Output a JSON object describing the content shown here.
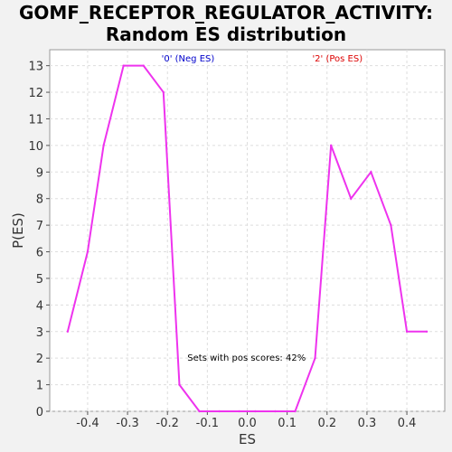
{
  "chart_data": {
    "type": "line",
    "title_line1": "GOMF_RECEPTOR_REGULATOR_ACTIVITY:",
    "title_line2": "Random ES distribution",
    "xlabel": "ES",
    "ylabel": "P(ES)",
    "xlim": [
      -0.495,
      0.495
    ],
    "ylim": [
      0,
      13.6
    ],
    "xticks": [
      -0.4,
      -0.3,
      -0.2,
      -0.1,
      0.0,
      0.1,
      0.2,
      0.3,
      0.4
    ],
    "xtick_labels": [
      "-0.4",
      "-0.3",
      "-0.2",
      "-0.1",
      "0.0",
      "0.1",
      "0.2",
      "0.3",
      "0.4"
    ],
    "yticks": [
      0,
      1,
      2,
      3,
      4,
      5,
      6,
      7,
      8,
      9,
      10,
      11,
      12,
      13
    ],
    "grid": true,
    "legend": [
      {
        "label": "'0' (Neg ES)",
        "color": "#0000cc",
        "x": -0.215
      },
      {
        "label": "'2' (Pos ES)",
        "color": "#dd0000",
        "x": 0.163
      }
    ],
    "annotation": {
      "text": "Sets with pos scores: 42%",
      "x": -0.15,
      "y": 1.9
    },
    "series": [
      {
        "color": "#ee33ee",
        "x": [
          -0.45,
          -0.4,
          -0.36,
          -0.31,
          -0.26,
          -0.21,
          -0.17,
          -0.12,
          -0.07,
          -0.02,
          0.02,
          0.07,
          0.12,
          0.17,
          0.21,
          0.26,
          0.31,
          0.36,
          0.4,
          0.45
        ],
        "y": [
          3,
          6,
          10,
          13,
          13,
          12,
          1,
          0,
          0,
          0,
          0,
          0,
          0,
          2,
          10,
          8,
          9,
          7,
          3,
          3
        ]
      }
    ]
  }
}
